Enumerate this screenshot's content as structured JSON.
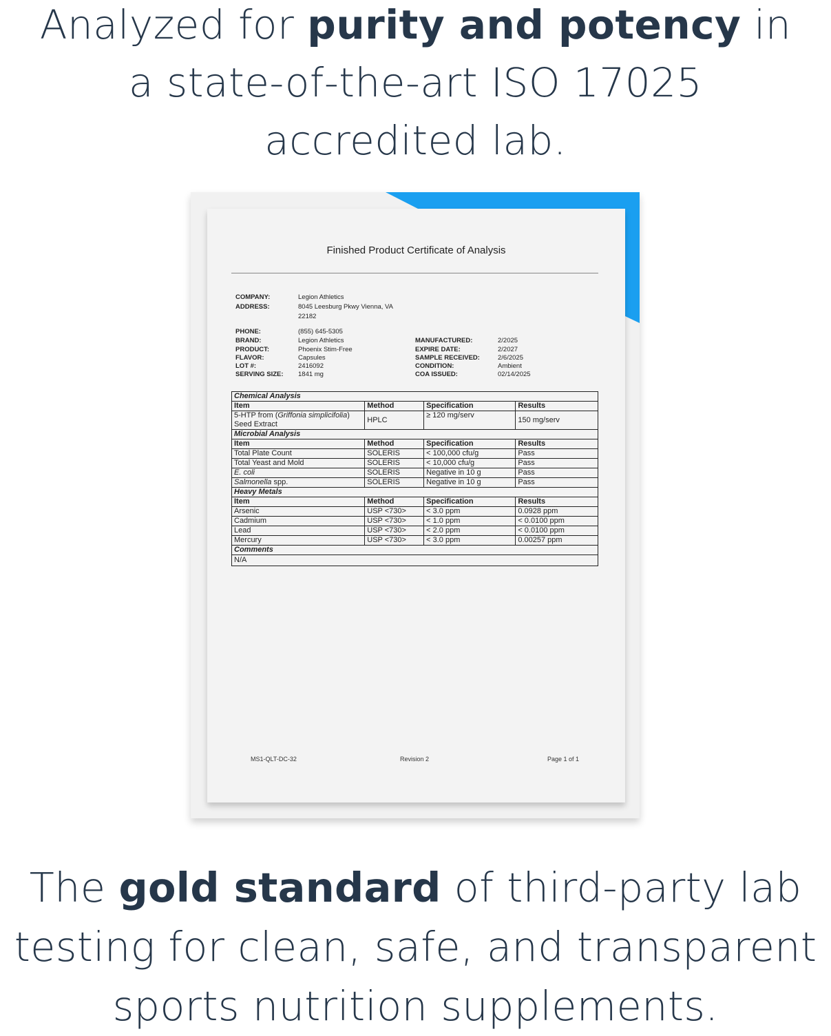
{
  "headline_top": [
    [
      {
        "t": "Analyzed for "
      },
      {
        "t": "purity and potency",
        "b": true
      },
      {
        "t": " in"
      }
    ],
    [
      {
        "t": "a state-of-the-art ISO 17025"
      }
    ],
    [
      {
        "t": "accredited lab."
      }
    ]
  ],
  "headline_bottom": [
    [
      {
        "t": "The "
      },
      {
        "t": "gold standard",
        "b": true
      },
      {
        "t": " of third-party lab"
      }
    ],
    [
      {
        "t": "testing for clean, safe, and transparent"
      }
    ],
    [
      {
        "t": "sports nutrition supplements."
      }
    ]
  ],
  "colors": {
    "text": "#26374a",
    "accent_blue": "#1a9ff0"
  },
  "certificate": {
    "title": "Finished Product Certificate of Analysis",
    "info_left": [
      {
        "label": "COMPANY:",
        "value": "Legion Athletics"
      },
      {
        "label": "ADDRESS:",
        "value": "8045 Leesburg Pkwy Vienna, VA"
      },
      {
        "label": "",
        "value": "22182"
      },
      {
        "label": "PHONE:",
        "value": "(855) 645-5305"
      },
      {
        "label": "BRAND:",
        "value": "Legion Athletics"
      },
      {
        "label": "PRODUCT:",
        "value": "Phoenix Stim-Free"
      },
      {
        "label": "FLAVOR:",
        "value": "Capsules"
      },
      {
        "label": "LOT #:",
        "value": "2416092"
      },
      {
        "label": "SERVING SIZE:",
        "value": "1841 mg"
      }
    ],
    "info_right": [
      {
        "label": "MANUFACTURED:",
        "value": "2/2025"
      },
      {
        "label": "EXPIRE DATE:",
        "value": "2/2027"
      },
      {
        "label": "SAMPLE RECEIVED:",
        "value": "2/6/2025"
      },
      {
        "label": "CONDITION:",
        "value": "Ambient"
      },
      {
        "label": "COA ISSUED:",
        "value": "02/14/2025"
      }
    ],
    "columns": [
      "Item",
      "Method",
      "Specification",
      "Results"
    ],
    "sections": [
      {
        "title": "Chemical Analysis",
        "rows": [
          {
            "item": [
              {
                "t": "5-HTP from ("
              },
              {
                "t": "Griffonia simplicifolia",
                "i": true
              },
              {
                "t": ")"
              },
              {
                "br": true
              },
              {
                "t": "Seed Extract"
              }
            ],
            "method": "HPLC",
            "spec": "≥ 120 mg/serv",
            "result": "150 mg/serv"
          }
        ]
      },
      {
        "title": "Microbial Analysis",
        "rows": [
          {
            "item": [
              {
                "t": "Total Plate Count"
              }
            ],
            "method": "SOLERIS",
            "spec": "< 100,000 cfu/g",
            "result": "Pass"
          },
          {
            "item": [
              {
                "t": "Total Yeast and Mold"
              }
            ],
            "method": "SOLERIS",
            "spec": "< 10,000 cfu/g",
            "result": "Pass"
          },
          {
            "item": [
              {
                "t": "E. coli",
                "i": true
              }
            ],
            "method": "SOLERIS",
            "spec": "Negative in 10 g",
            "result": "Pass"
          },
          {
            "item": [
              {
                "t": "Salmonella",
                "i": true
              },
              {
                "t": " spp."
              }
            ],
            "method": "SOLERIS",
            "spec": "Negative in 10 g",
            "result": "Pass"
          }
        ]
      },
      {
        "title": "Heavy Metals",
        "rows": [
          {
            "item": [
              {
                "t": "Arsenic"
              }
            ],
            "method": "USP <730>",
            "spec": "< 3.0 ppm",
            "result": "0.0928 ppm"
          },
          {
            "item": [
              {
                "t": "Cadmium"
              }
            ],
            "method": "USP <730>",
            "spec": "< 1.0 ppm",
            "result": "< 0.0100 ppm"
          },
          {
            "item": [
              {
                "t": "Lead"
              }
            ],
            "method": "USP <730>",
            "spec": "< 2.0 ppm",
            "result": "< 0.0100 ppm"
          },
          {
            "item": [
              {
                "t": "Mercury"
              }
            ],
            "method": "USP <730>",
            "spec": "< 3.0 ppm",
            "result": "0.00257 ppm"
          }
        ]
      }
    ],
    "comments_title": "Comments",
    "comments": "N/A",
    "footer": {
      "doc_id": "MS1-QLT-DC-32",
      "revision": "Revision 2",
      "page": "Page 1 of 1"
    }
  }
}
